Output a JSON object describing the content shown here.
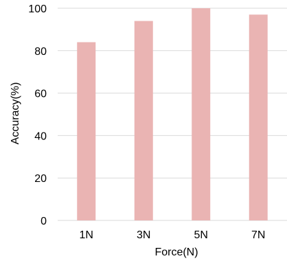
{
  "chart_data": {
    "type": "bar",
    "categories": [
      "1N",
      "3N",
      "5N",
      "7N"
    ],
    "values": [
      84,
      94,
      100,
      97
    ],
    "title": "",
    "xlabel": "Force(N)",
    "ylabel": "Accuracy(%)",
    "ylim": [
      0,
      100
    ],
    "yticks": [
      "0",
      "20",
      "40",
      "60",
      "80",
      "100"
    ],
    "grid": true,
    "legend": "none",
    "bar_color": "#eab4b3",
    "grid_color": "#d9d9d9"
  }
}
